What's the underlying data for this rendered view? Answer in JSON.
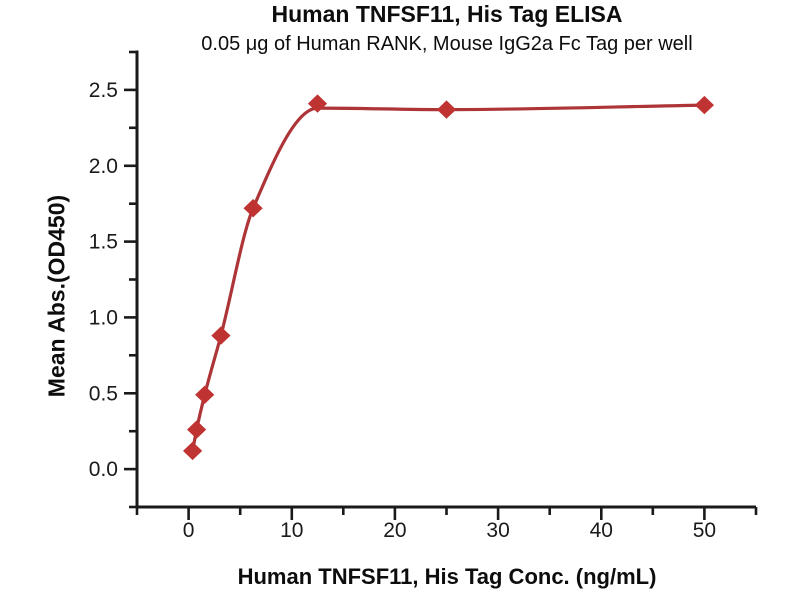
{
  "chart_data": {
    "type": "scatter",
    "title": "Human TNFSF11, His Tag ELISA",
    "subtitle": "0.05 μg of Human RANK, Mouse IgG2a Fc Tag per well",
    "xlabel": "Human TNFSF11, His Tag Conc. (ng/mL)",
    "ylabel": "Mean Abs.(OD450)",
    "x": [
      0.39,
      0.78,
      1.56,
      3.13,
      6.25,
      12.5,
      25,
      50
    ],
    "y": [
      0.12,
      0.26,
      0.49,
      0.88,
      1.72,
      2.41,
      2.37,
      2.4
    ],
    "curve_y": [
      0.12,
      0.26,
      0.49,
      0.88,
      1.72,
      2.38,
      2.37,
      2.4
    ],
    "xlim": [
      -5,
      55
    ],
    "ylim": [
      -0.25,
      2.75
    ],
    "x_major_ticks": [
      0,
      10,
      20,
      30,
      40,
      50
    ],
    "x_major_tick_labels": [
      "0",
      "10",
      "20",
      "30",
      "40",
      "50"
    ],
    "x_minor_ticks": [
      -5,
      5,
      15,
      25,
      35,
      45,
      55
    ],
    "y_major_ticks": [
      0.0,
      0.5,
      1.0,
      1.5,
      2.0,
      2.5
    ],
    "y_major_tick_labels": [
      "0.0",
      "0.5",
      "1.0",
      "1.5",
      "2.0",
      "2.5"
    ],
    "y_minor_ticks": [
      -0.25,
      0.25,
      0.75,
      1.25,
      1.75,
      2.25,
      2.75
    ],
    "grid": "off",
    "legend": "none",
    "marker_shape": "diamond",
    "colors": {
      "marker": "#bf3333",
      "line": "#ad3437",
      "axis": "#1a1a1a",
      "tick_label": "#1a1a1a",
      "background": "#ffffff"
    }
  }
}
